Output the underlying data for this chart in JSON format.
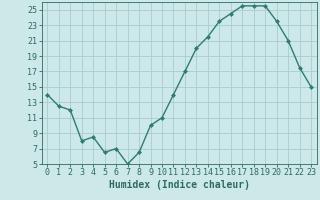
{
  "x": [
    0,
    1,
    2,
    3,
    4,
    5,
    6,
    7,
    8,
    9,
    10,
    11,
    12,
    13,
    14,
    15,
    16,
    17,
    18,
    19,
    20,
    21,
    22,
    23
  ],
  "y": [
    14,
    12.5,
    12,
    8,
    8.5,
    6.5,
    7,
    5,
    6.5,
    10,
    11,
    14,
    17,
    20,
    21.5,
    23.5,
    24.5,
    25.5,
    25.5,
    25.5,
    23.5,
    21,
    17.5,
    15
  ],
  "line_color": "#2e7d6e",
  "marker": "D",
  "marker_size": 2,
  "bg_color": "#cce8e8",
  "grid_color": "#aacccc",
  "xlabel": "Humidex (Indice chaleur)",
  "xlim": [
    -0.5,
    23.5
  ],
  "ylim": [
    5,
    26
  ],
  "yticks": [
    5,
    7,
    9,
    11,
    13,
    15,
    17,
    19,
    21,
    23,
    25
  ],
  "xticks": [
    0,
    1,
    2,
    3,
    4,
    5,
    6,
    7,
    8,
    9,
    10,
    11,
    12,
    13,
    14,
    15,
    16,
    17,
    18,
    19,
    20,
    21,
    22,
    23
  ],
  "tick_color": "#2e6b5e",
  "label_color": "#2e6b5e",
  "xlabel_fontsize": 7,
  "tick_fontsize": 6,
  "line_width": 1.0
}
